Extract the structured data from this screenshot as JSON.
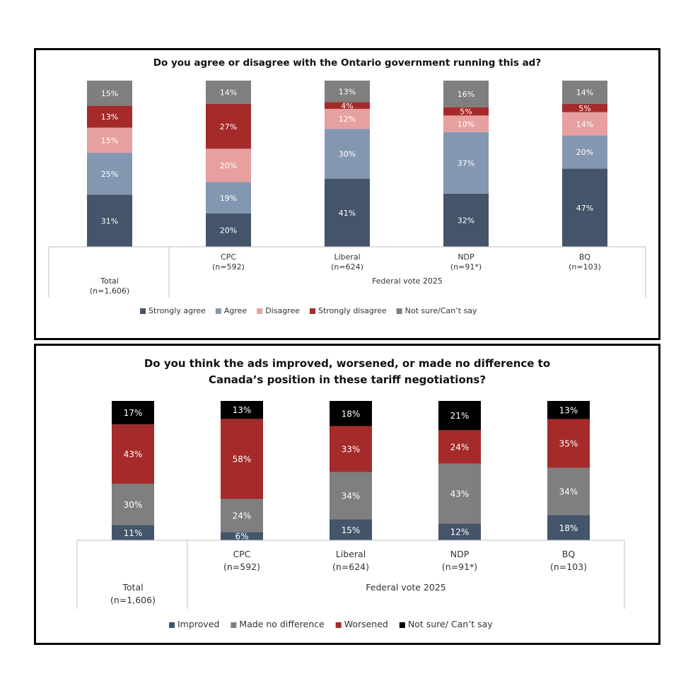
{
  "chart_data": [
    {
      "type": "bar",
      "stacked": true,
      "title": "Do you agree or disagree with the Ontario government running this ad?",
      "categories": [
        "Total",
        "CPC",
        "Liberal",
        "NDP",
        "BQ"
      ],
      "category_lines": [
        [
          "Total",
          "(n=1,606)"
        ],
        [
          "CPC",
          "(n=592)"
        ],
        [
          "Liberal",
          "(n=624)"
        ],
        [
          "NDP",
          "(n=91*)"
        ],
        [
          "BQ",
          "(n=103)"
        ]
      ],
      "group_label": "Federal vote 2025",
      "series": [
        {
          "name": "Strongly agree",
          "color": "#44546a",
          "values": [
            31,
            20,
            41,
            32,
            47
          ]
        },
        {
          "name": "Agree",
          "color": "#8497b0",
          "values": [
            25,
            19,
            30,
            37,
            20
          ]
        },
        {
          "name": "Disagree",
          "color": "#e6a0a0",
          "values": [
            15,
            20,
            12,
            10,
            14
          ]
        },
        {
          "name": "Strongly disagree",
          "color": "#a52a2a",
          "values": [
            13,
            27,
            4,
            5,
            5
          ]
        },
        {
          "name": "Not sure/Can’t say",
          "color": "#7f7f7f",
          "values": [
            15,
            14,
            13,
            16,
            14
          ]
        }
      ],
      "legend_position": "bottom"
    },
    {
      "type": "bar",
      "stacked": true,
      "title": "Do you think the ads improved, worsened, or made no difference to Canada’s position in these tariff negotiations?",
      "categories": [
        "Total",
        "CPC",
        "Liberal",
        "NDP",
        "BQ"
      ],
      "category_lines": [
        [
          "Total",
          "(n=1,606)"
        ],
        [
          "CPC",
          "(n=592)"
        ],
        [
          "Liberal",
          "(n=624)"
        ],
        [
          "NDP",
          "(n=91*)"
        ],
        [
          "BQ",
          "(n=103)"
        ]
      ],
      "group_label": "Federal vote 2025",
      "series": [
        {
          "name": "Improved",
          "color": "#44546a",
          "values": [
            11,
            6,
            15,
            12,
            18
          ]
        },
        {
          "name": "Made no difference",
          "color": "#7f7f7f",
          "values": [
            30,
            24,
            34,
            43,
            34
          ]
        },
        {
          "name": "Worsened",
          "color": "#a52a2a",
          "values": [
            43,
            58,
            33,
            24,
            35
          ]
        },
        {
          "name": "Not sure/ Can’t say",
          "color": "#000000",
          "values": [
            17,
            13,
            18,
            21,
            13
          ]
        }
      ],
      "legend_position": "bottom"
    }
  ]
}
